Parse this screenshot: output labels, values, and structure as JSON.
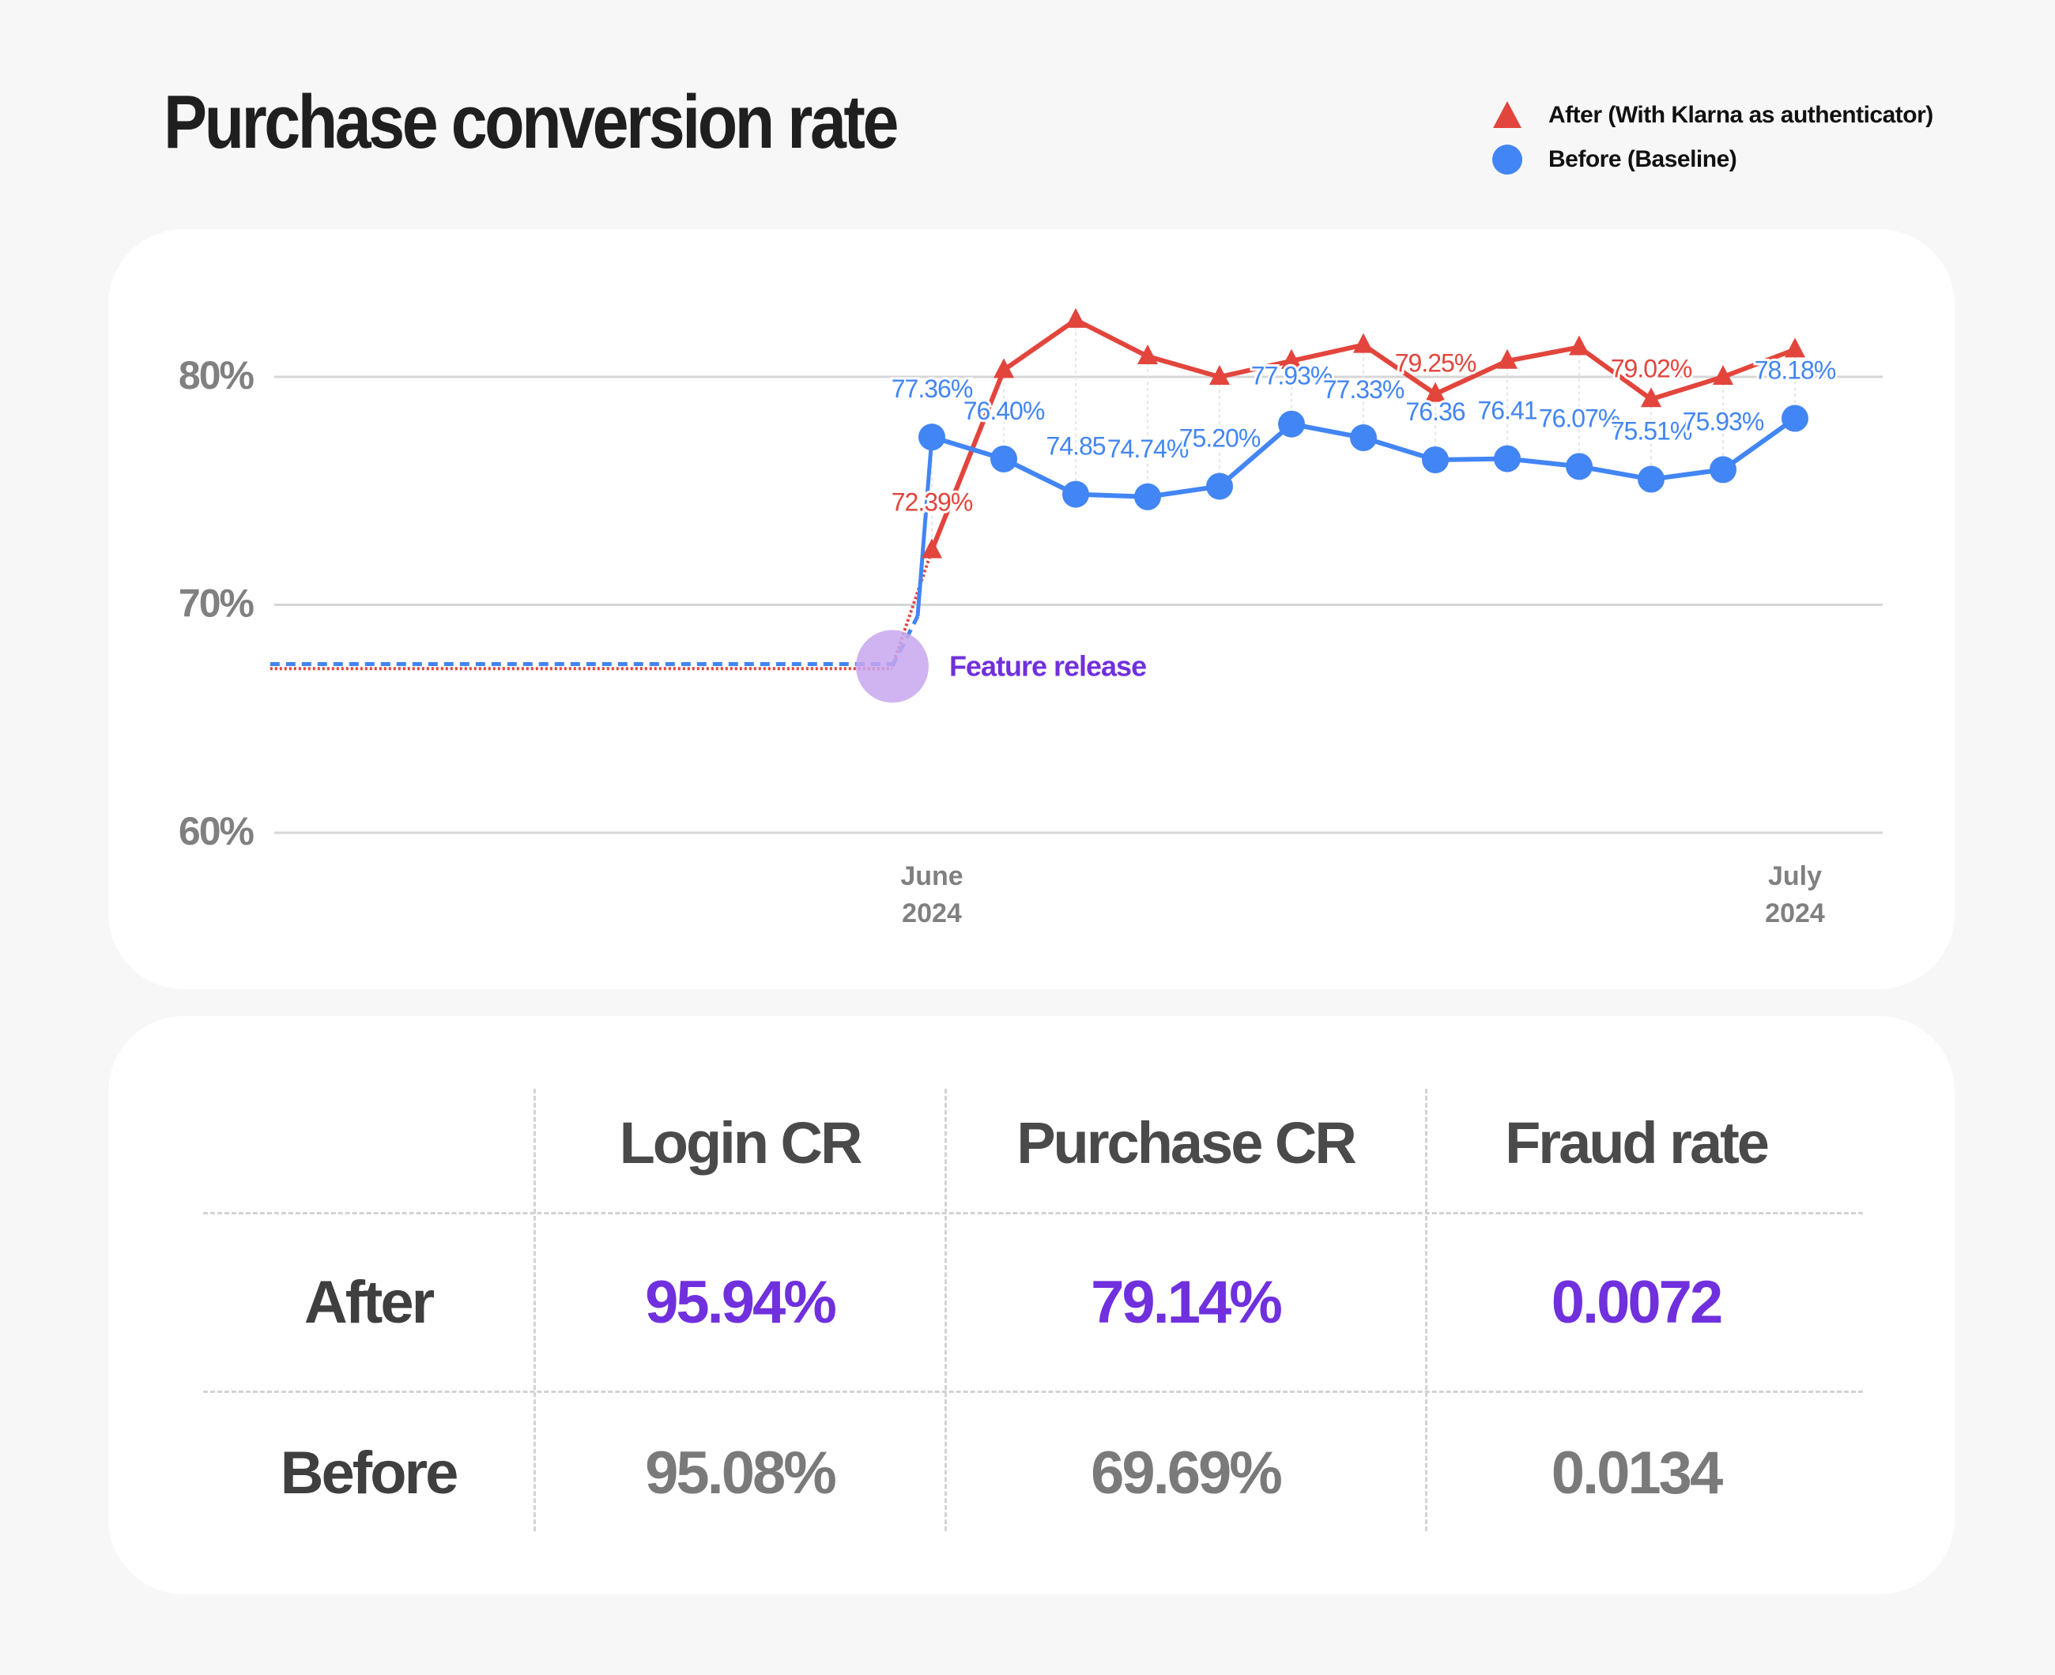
{
  "page": {
    "title": "Purchase conversion rate"
  },
  "colors": {
    "after": "#e2453c",
    "before": "#4285f4",
    "accent": "#7030dd",
    "release_marker": "#c8a6ee",
    "grid": "#d6d6d6",
    "axis_text": "#808080"
  },
  "legend": {
    "after_label": "After (With Klarna as authenticator)",
    "before_label": "Before (Baseline)",
    "after_icon": "triangle-icon",
    "before_icon": "circle-icon"
  },
  "chart_data": {
    "type": "line",
    "title": "Purchase conversion rate",
    "ylim": [
      60,
      80
    ],
    "y_ticks": [
      "80%",
      "70%",
      "60%"
    ],
    "y_tick_values": [
      80,
      70,
      60
    ],
    "x_ticks": [
      {
        "line1": "June",
        "line2": "2024",
        "index": 0
      },
      {
        "line1": "July",
        "line2": "2024",
        "index": 12
      }
    ],
    "annotation": {
      "label": "Feature release",
      "index": -0.55,
      "value": 67.3
    },
    "baseline": {
      "from_index": -9.2,
      "to_index": -0.55,
      "after_value": 67.2,
      "before_value": 67.4
    },
    "series": [
      {
        "name": "After (With Klarna as authenticator)",
        "marker": "triangle",
        "values": [
          72.39,
          80.3,
          82.5,
          80.9,
          80.0,
          80.7,
          81.4,
          79.25,
          80.7,
          81.3,
          79.02,
          80.0,
          81.2
        ],
        "labels": [
          "72.39%",
          null,
          null,
          null,
          null,
          null,
          null,
          "79.25%",
          null,
          null,
          "79.02%",
          null,
          null
        ]
      },
      {
        "name": "Before (Baseline)",
        "marker": "circle",
        "values": [
          77.36,
          76.4,
          74.85,
          74.74,
          75.2,
          77.93,
          77.33,
          76.36,
          76.41,
          76.07,
          75.51,
          75.93,
          78.18
        ],
        "labels": [
          "77.36%",
          "76.40%",
          "74.85",
          "74.74%",
          "75.20%",
          "77.93%",
          "77.33%",
          "76.36",
          "76.41",
          "76.07%",
          "75.51%",
          "75.93%",
          "78.18%"
        ]
      }
    ]
  },
  "table": {
    "headers": [
      "Login CR",
      "Purchase CR",
      "Fraud rate"
    ],
    "rows": [
      {
        "label": "After",
        "values": [
          "95.94%",
          "79.14%",
          "0.0072"
        ]
      },
      {
        "label": "Before",
        "values": [
          "95.08%",
          "69.69%",
          "0.0134"
        ]
      }
    ]
  }
}
